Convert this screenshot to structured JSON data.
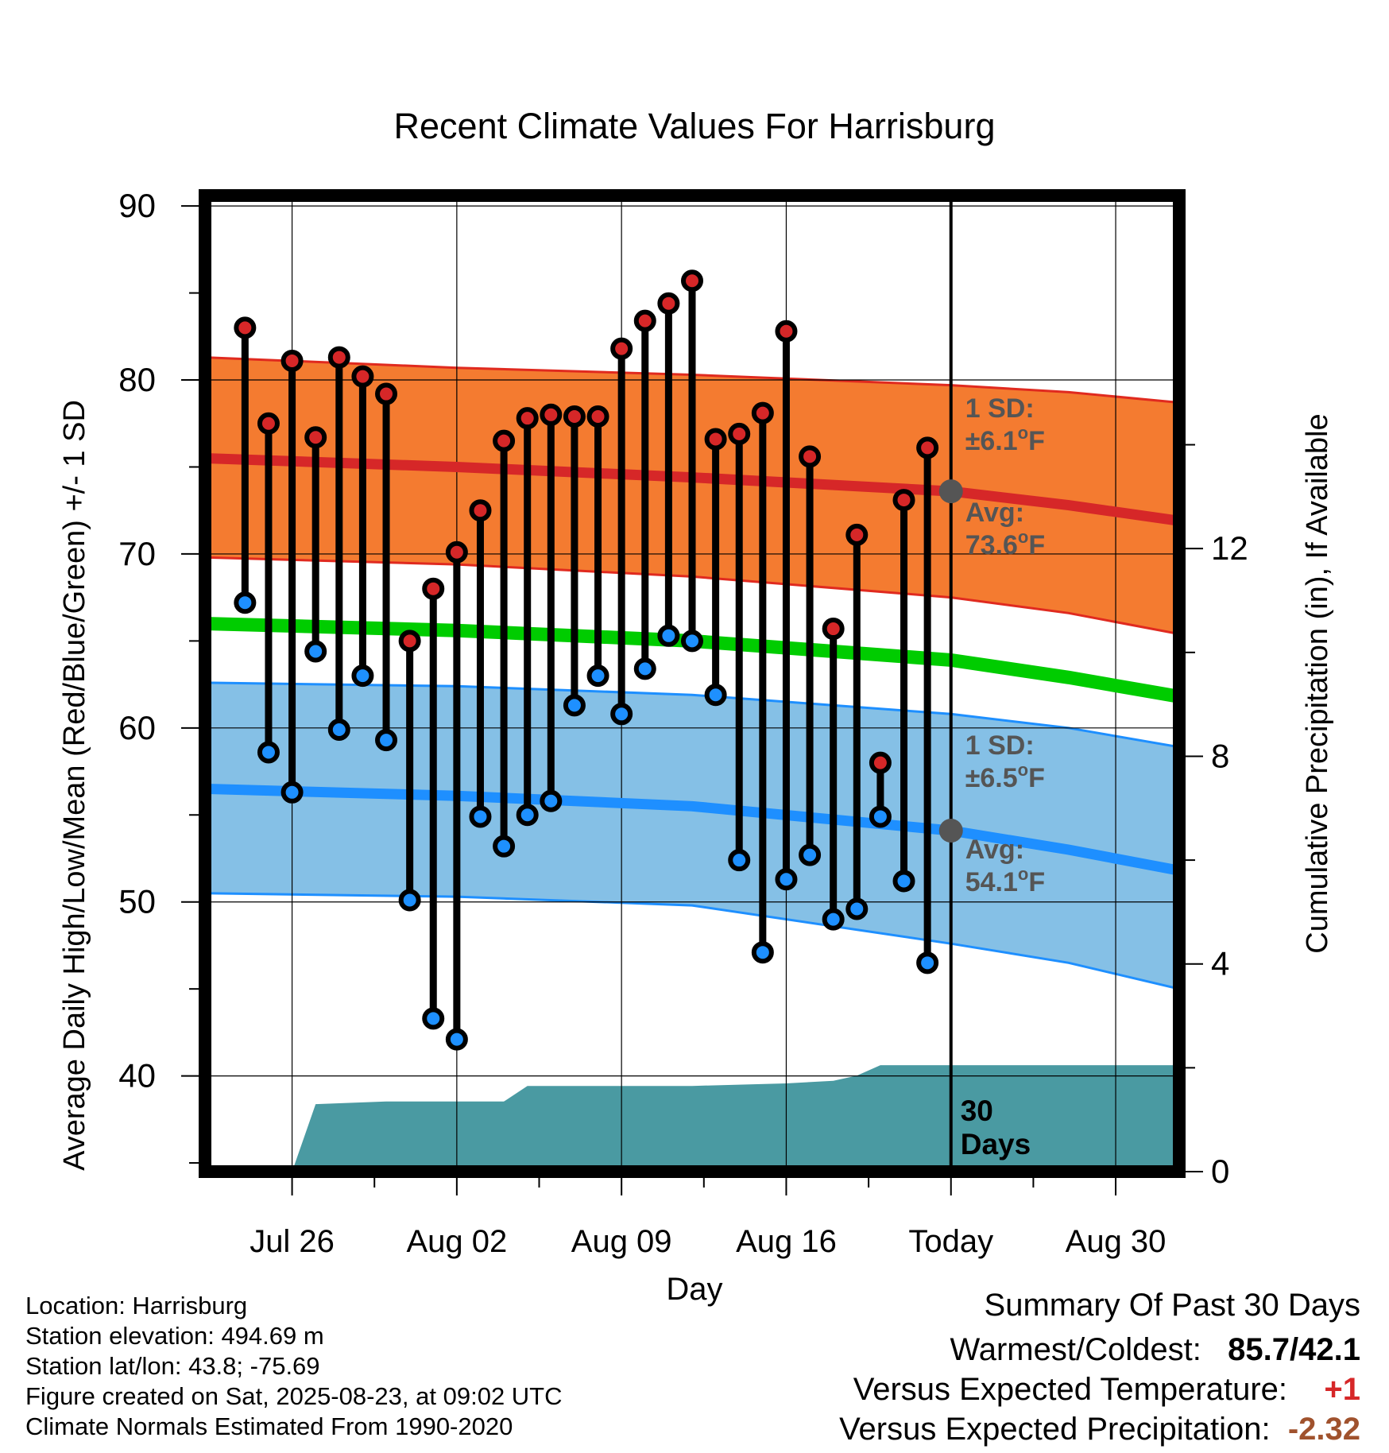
{
  "chart_data": {
    "type": "line",
    "title": "Recent Climate Values For Harrisburg",
    "xlabel": "Day",
    "ylabel": "Average Daily High/Low/Mean (Red/Blue/Green) +/- 1 SD",
    "y2label": "Cumulative Precipitation (in), If Available",
    "ylim": [
      34.5,
      90.6
    ],
    "y_ticks": [
      40,
      50,
      60,
      70,
      80,
      90
    ],
    "y2lim": [
      0,
      18.8
    ],
    "y2_ticks": [
      0,
      4,
      8,
      12
    ],
    "x_ticks": [
      {
        "day": 3,
        "label": "Jul 26"
      },
      {
        "day": 10,
        "label": "Aug 02"
      },
      {
        "day": 17,
        "label": "Aug 09"
      },
      {
        "day": 24,
        "label": "Aug 16"
      },
      {
        "day": 31,
        "label": "Today"
      },
      {
        "day": 38,
        "label": "Aug 30"
      }
    ],
    "x_range_days": [
      -0.7,
      40.7
    ],
    "today_day": 31,
    "grid": true,
    "normals": {
      "high_mean": [
        [
          -0.7,
          75.5
        ],
        [
          10,
          75.0
        ],
        [
          20,
          74.4
        ],
        [
          31,
          73.6
        ],
        [
          36,
          72.8
        ],
        [
          40.7,
          71.9
        ]
      ],
      "high_upper": [
        [
          -0.7,
          81.3
        ],
        [
          10,
          80.7
        ],
        [
          20,
          80.3
        ],
        [
          31,
          79.7
        ],
        [
          36,
          79.3
        ],
        [
          40.7,
          78.7
        ]
      ],
      "high_lower": [
        [
          -0.7,
          69.8
        ],
        [
          10,
          69.4
        ],
        [
          20,
          68.7
        ],
        [
          31,
          67.5
        ],
        [
          36,
          66.6
        ],
        [
          40.7,
          65.4
        ]
      ],
      "mean": [
        [
          -0.7,
          66.0
        ],
        [
          10,
          65.6
        ],
        [
          20,
          65.0
        ],
        [
          31,
          63.9
        ],
        [
          36,
          62.9
        ],
        [
          40.7,
          61.8
        ]
      ],
      "low_mean": [
        [
          -0.7,
          56.5
        ],
        [
          10,
          56.1
        ],
        [
          20,
          55.5
        ],
        [
          31,
          54.1
        ],
        [
          36,
          53.0
        ],
        [
          40.7,
          51.8
        ]
      ],
      "low_upper": [
        [
          -0.7,
          62.6
        ],
        [
          10,
          62.4
        ],
        [
          20,
          61.9
        ],
        [
          31,
          60.8
        ],
        [
          36,
          60.0
        ],
        [
          40.7,
          58.9
        ]
      ],
      "low_lower": [
        [
          -0.7,
          50.5
        ],
        [
          10,
          50.3
        ],
        [
          20,
          49.8
        ],
        [
          31,
          47.6
        ],
        [
          36,
          46.5
        ],
        [
          40.7,
          45.0
        ]
      ]
    },
    "series": [
      {
        "name": "Red",
        "values": [
          83.0,
          77.5,
          81.1,
          76.7,
          81.3,
          80.2,
          79.2,
          65.0,
          68.0,
          70.1,
          72.5,
          76.5,
          77.8,
          78.0,
          77.9,
          77.9,
          81.8,
          83.4,
          84.4,
          85.7,
          76.6,
          76.9,
          78.1,
          82.8,
          75.6,
          65.7,
          71.1,
          58.0,
          73.1,
          76.1
        ]
      },
      {
        "name": "Blue",
        "values": [
          67.2,
          58.6,
          56.3,
          64.4,
          59.9,
          63.0,
          59.3,
          50.1,
          43.3,
          42.1,
          54.9,
          53.2,
          55.0,
          55.8,
          61.3,
          63.0,
          60.8,
          63.4,
          65.3,
          65.0,
          61.9,
          52.4,
          47.1,
          51.3,
          52.7,
          49.0,
          49.6,
          54.9,
          51.2,
          46.5
        ]
      }
    ],
    "precip_cumulative": [
      [
        3,
        0.0
      ],
      [
        4,
        1.3
      ],
      [
        7,
        1.35
      ],
      [
        10,
        1.35
      ],
      [
        12,
        1.35
      ],
      [
        13,
        1.65
      ],
      [
        16,
        1.65
      ],
      [
        20,
        1.65
      ],
      [
        24,
        1.7
      ],
      [
        26,
        1.75
      ],
      [
        27,
        1.85
      ],
      [
        28,
        2.05
      ],
      [
        31,
        2.05
      ],
      [
        40.7,
        2.05
      ]
    ],
    "annotations": {
      "high_sd_label": "1 SD:",
      "high_sd_value": "±6.1",
      "high_avg_label": "Avg:",
      "high_avg_value": "73.6",
      "low_sd_label": "1 SD:",
      "low_sd_value": "±6.5",
      "low_avg_label": "Avg:",
      "low_avg_value": "54.1",
      "deg_sup": "o",
      "unit": "F",
      "days_number": "30",
      "days_word": "Days"
    },
    "colors": {
      "high_band": "#f47b30",
      "high_edge": "#e02a1f",
      "high_mean": "#d62728",
      "mean": "#00cc00",
      "low_band": "#85c0e6",
      "low_edge": "#1e8fff",
      "low_mean": "#1e8fff",
      "precip": "#4a9aa2",
      "high_dot": "#d62728",
      "low_dot": "#1e90ff",
      "avg_marker": "#555555",
      "annotation_text": "#555555"
    }
  },
  "info": {
    "location": "Location: Harrisburg",
    "elevation": "Station elevation: 494.69 m",
    "latlon": "Station lat/lon: 43.8; -75.69",
    "created": "Figure created on Sat, 2025-08-23, at 09:02 UTC",
    "normals": "Climate Normals Estimated From 1990-2020"
  },
  "summary": {
    "title": "Summary Of Past 30 Days",
    "warm_label": "Warmest/Coldest:",
    "warm_value": "85.7/42.1",
    "temp_label": "Versus Expected Temperature:",
    "temp_value": "+1",
    "temp_color": "#d62728",
    "precip_label": "Versus Expected Precipitation:",
    "precip_value": "-2.32",
    "precip_color": "#a0522d"
  }
}
